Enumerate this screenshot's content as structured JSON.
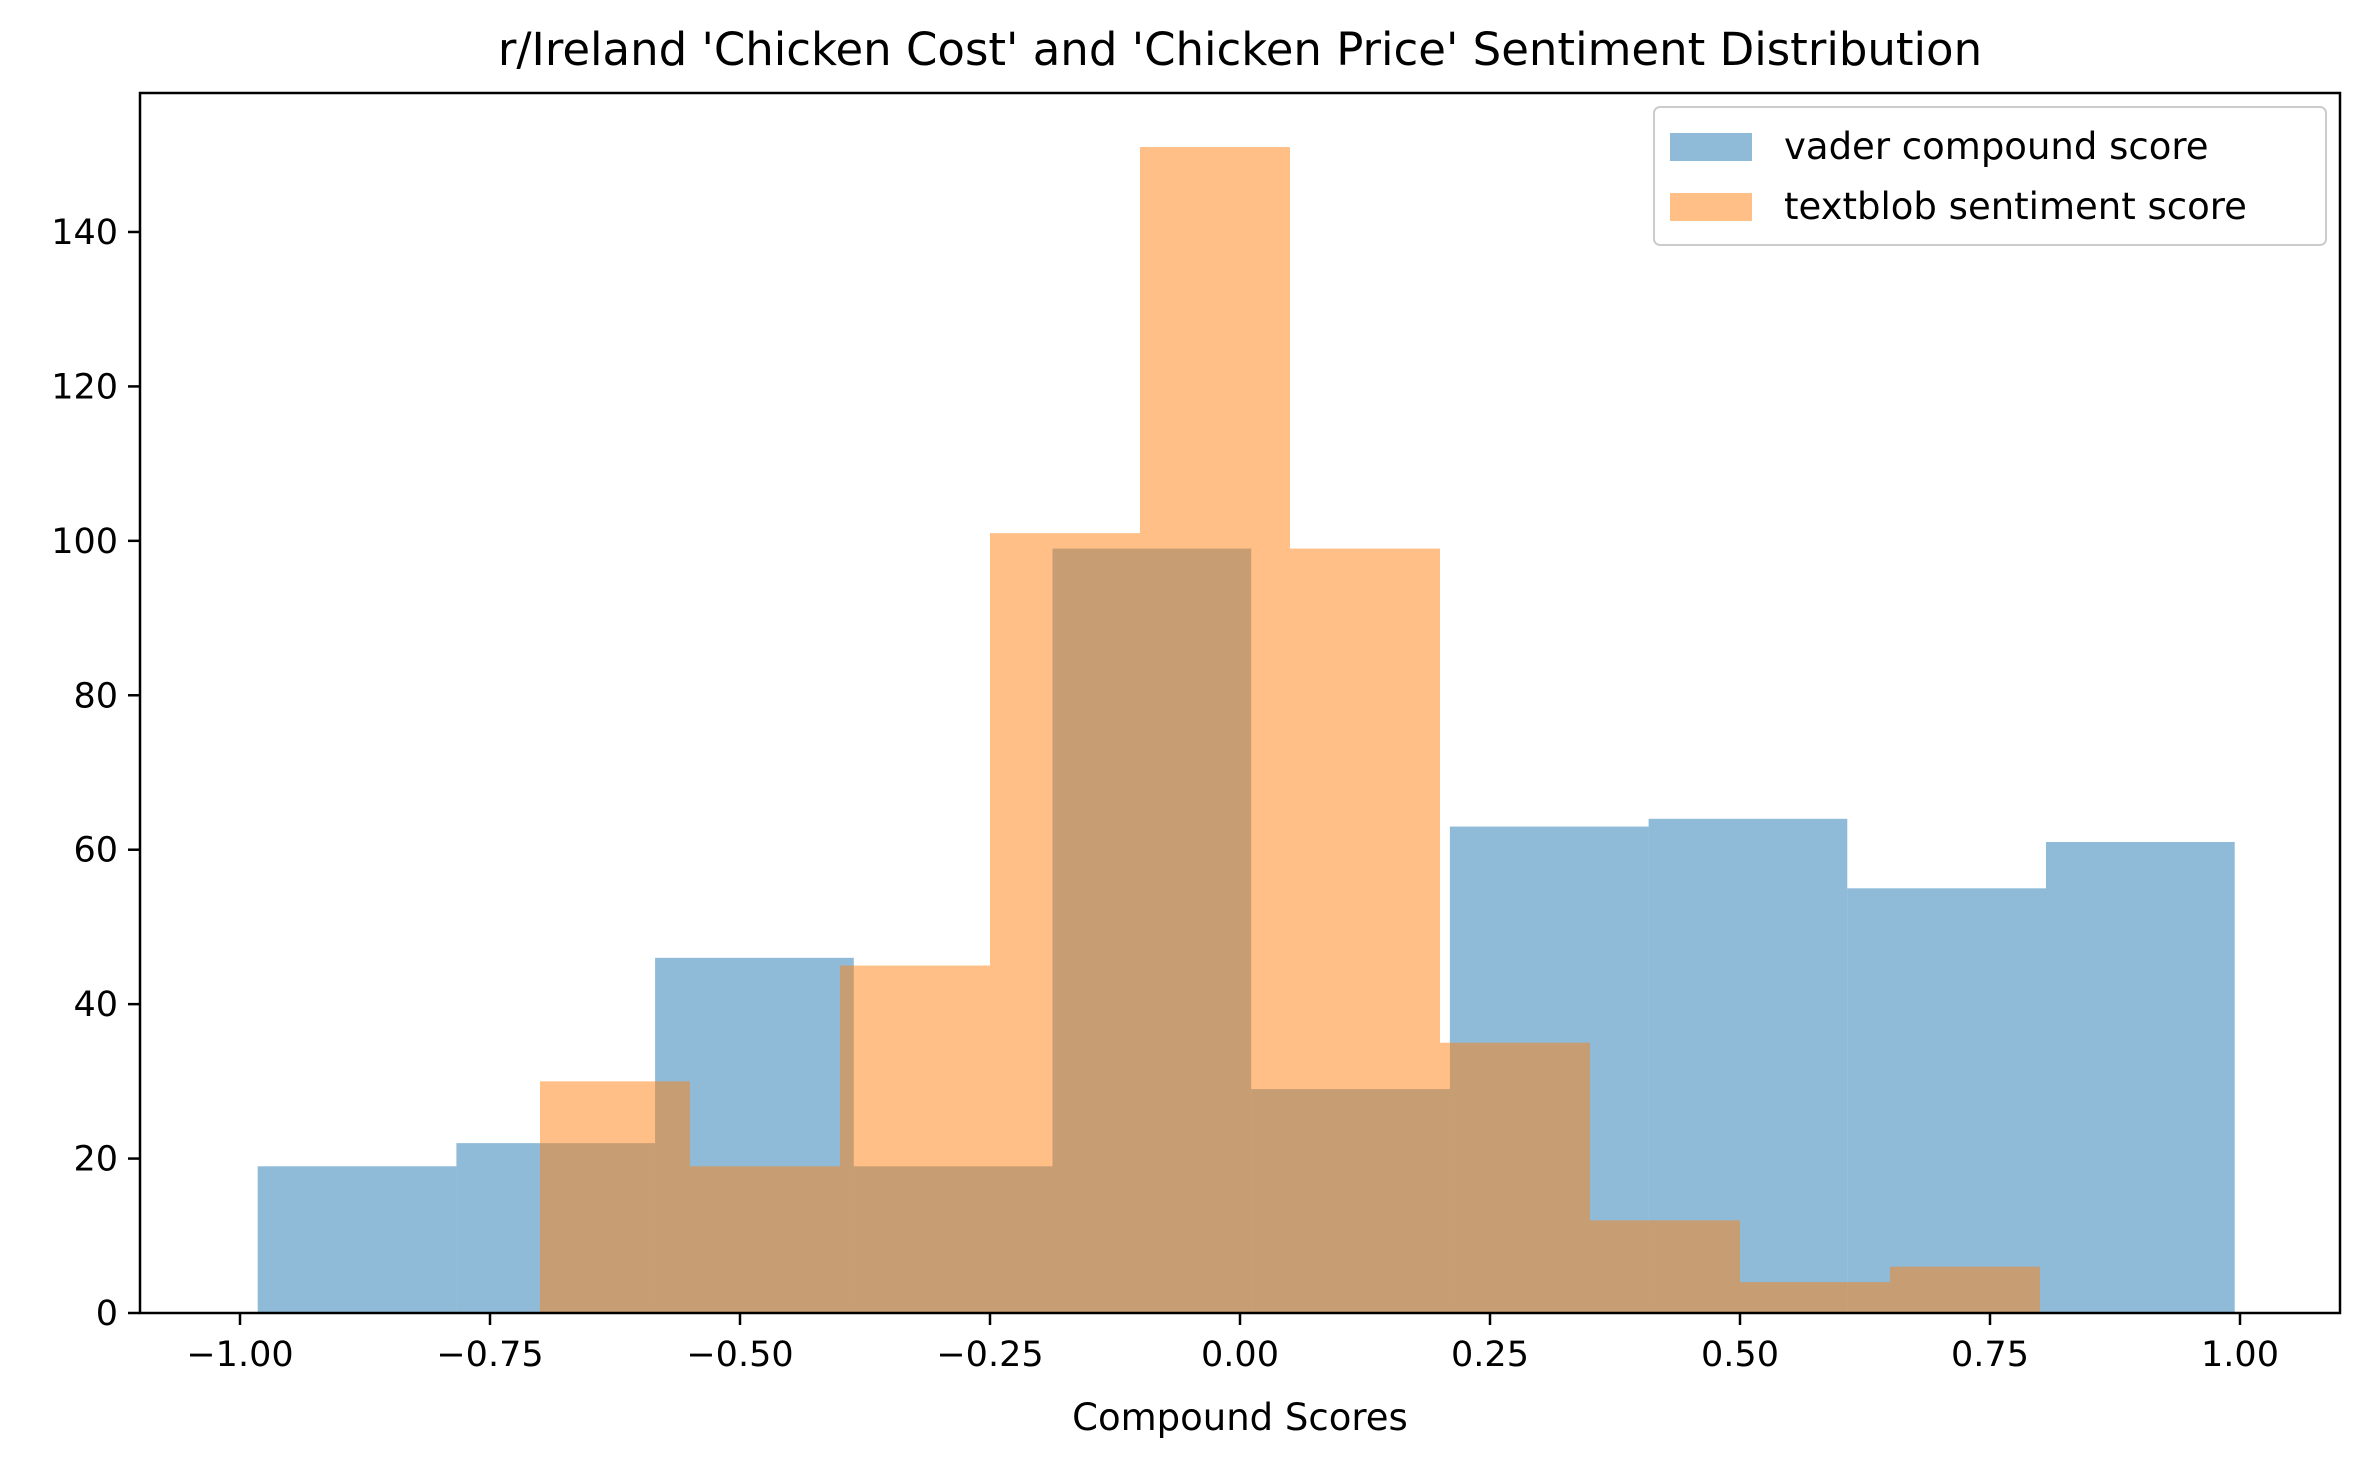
{
  "chart_data": {
    "type": "histogram",
    "title": "r/Ireland 'Chicken Cost' and 'Chicken Price' Sentiment Distribution",
    "xlabel": "Compound Scores",
    "ylabel": "",
    "xlim": [
      -1.1,
      1.1
    ],
    "ylim": [
      0,
      158
    ],
    "xticks": [
      -1.0,
      -0.75,
      -0.5,
      -0.25,
      0.0,
      0.25,
      0.5,
      0.75,
      1.0
    ],
    "xtick_labels": [
      "−1.00",
      "−0.75",
      "−0.50",
      "−0.25",
      "0.00",
      "0.25",
      "0.50",
      "0.75",
      "1.00"
    ],
    "yticks": [
      0,
      20,
      40,
      60,
      80,
      100,
      120,
      140
    ],
    "ytick_labels": [
      "0",
      "20",
      "40",
      "60",
      "80",
      "100",
      "120",
      "140"
    ],
    "grid": false,
    "legend_position": "top-right",
    "series": [
      {
        "name": "vader compound score",
        "color": "#1f77b4",
        "opacity": 0.5,
        "bin_edges": [
          -0.9823,
          -0.7836,
          -0.5849,
          -0.3862,
          -0.1875,
          0.0112,
          0.2099,
          0.4086,
          0.6073,
          0.806,
          0.9947
        ],
        "counts": [
          19,
          22,
          46,
          19,
          99,
          29,
          63,
          64,
          55,
          61
        ]
      },
      {
        "name": "textblob sentiment score",
        "color": "#ff7f0e",
        "opacity": 0.5,
        "bin_edges": [
          -0.7,
          -0.55,
          -0.4,
          -0.25,
          -0.1,
          0.05,
          0.2,
          0.35,
          0.5,
          0.65,
          0.8
        ],
        "counts": [
          30,
          19,
          45,
          101,
          151,
          99,
          35,
          12,
          4,
          6
        ]
      }
    ]
  }
}
